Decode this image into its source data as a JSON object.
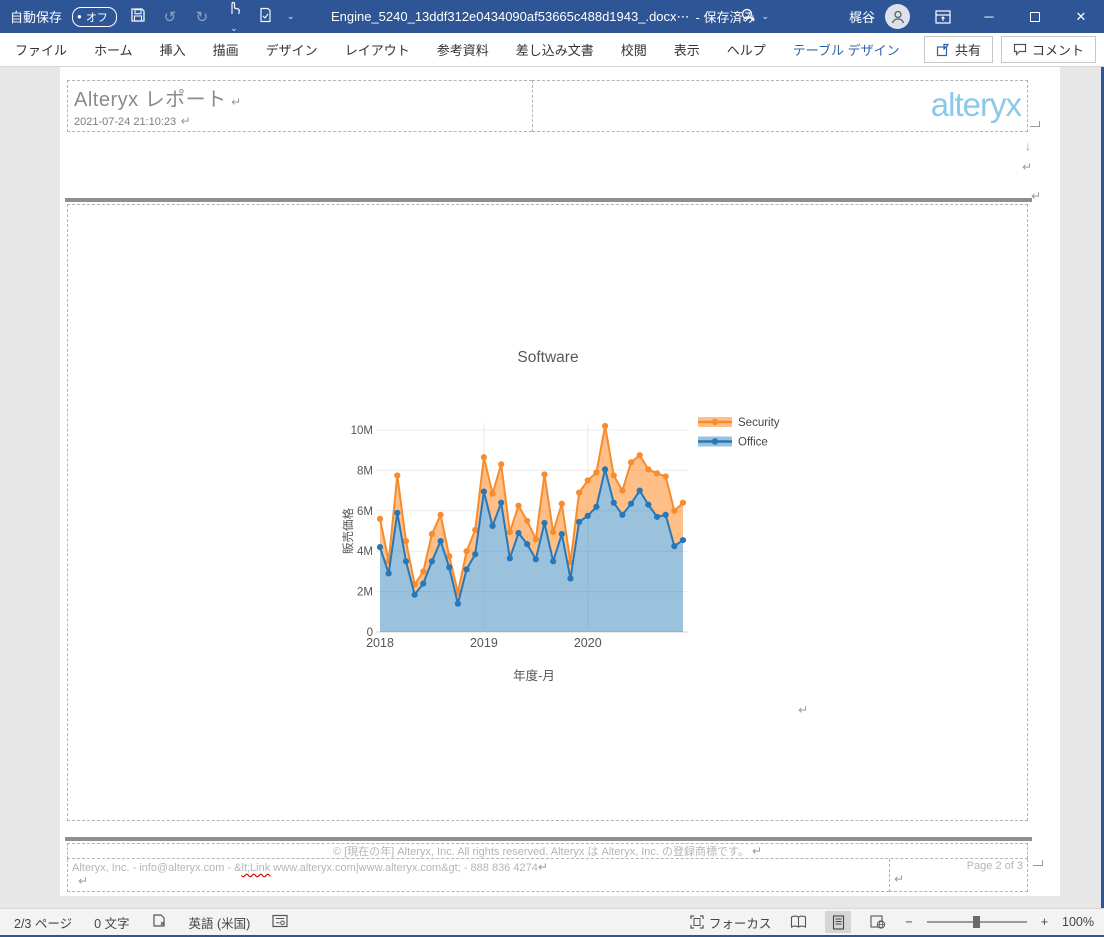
{
  "titlebar": {
    "autosave_label": "自動保存",
    "autosave_state": "オフ",
    "document_title": "Engine_5240_13ddf312e0434090af53665c488d1943_.docx⋯",
    "saved_status": "-  保存済み",
    "user_name": "梶谷"
  },
  "icons": {
    "dropdown_caret": "⌄",
    "minimize": "─",
    "close": "✕",
    "autosave_dot": "●",
    "down_mark": "↓",
    "return_mark": "↵",
    "minus": "−",
    "plus": "+",
    "undo": "↺",
    "redo": "↻"
  },
  "ribbon": {
    "tabs": [
      {
        "label": "ファイル",
        "contextual": false
      },
      {
        "label": "ホーム",
        "contextual": false
      },
      {
        "label": "挿入",
        "contextual": false
      },
      {
        "label": "描画",
        "contextual": false
      },
      {
        "label": "デザイン",
        "contextual": false
      },
      {
        "label": "レイアウト",
        "contextual": false
      },
      {
        "label": "参考資料",
        "contextual": false
      },
      {
        "label": "差し込み文書",
        "contextual": false
      },
      {
        "label": "校閲",
        "contextual": false
      },
      {
        "label": "表示",
        "contextual": false
      },
      {
        "label": "ヘルプ",
        "contextual": false
      },
      {
        "label": "テーブル デザイン",
        "contextual": true
      },
      {
        "label": "レイアウト",
        "contextual": true
      }
    ],
    "share_label": "共有",
    "comments_label": "コメント"
  },
  "document": {
    "header": {
      "report_title": "Alteryx レポート",
      "timestamp": "2021-07-24 21:10:23",
      "logo_text": "alteryx",
      "logo_color": "#8ac9ea"
    },
    "footer": {
      "copyright": "© [現在の年] Alteryx, Inc. All rights reserved. Alteryx は Alteryx, Inc. の登録商標です。",
      "contact_pre": "Alteryx, Inc. - info@alteryx.com - &",
      "contact_misspelled": "lt;Link",
      "contact_post": " www.alteryx.com|www.alteryx.com&gt; - 888 836 4274",
      "page_number": "Page 2 of 3"
    }
  },
  "chart_data": {
    "type": "area",
    "title": "Software",
    "xlabel": "年度-月",
    "ylabel": "販売価格",
    "units": "M",
    "x_ticks": [
      "2018",
      "2019",
      "2020"
    ],
    "x_tick_month_index": [
      0,
      12,
      24
    ],
    "y_ticks": [
      "0",
      "2M",
      "4M",
      "6M",
      "8M",
      "10M"
    ],
    "ylim": [
      0,
      10.5
    ],
    "grid": true,
    "legend_position": "top-right",
    "months_span": "2018-01 to 2020-12",
    "series": [
      {
        "name": "Security",
        "color": "#f68c2e",
        "fill": "rgba(255,127,14,0.5)",
        "values": [
          5.6,
          3.5,
          7.75,
          4.5,
          2.35,
          3.0,
          4.85,
          5.8,
          3.75,
          1.95,
          4.0,
          5.05,
          8.65,
          6.85,
          8.3,
          4.95,
          6.25,
          5.5,
          4.6,
          7.8,
          4.95,
          6.35,
          3.45,
          6.9,
          7.5,
          7.9,
          10.2,
          7.75,
          7.0,
          8.4,
          8.75,
          8.05,
          7.85,
          7.7,
          6.0,
          6.4
        ]
      },
      {
        "name": "Office",
        "color": "#2878b8",
        "fill": "rgba(31,119,180,0.45)",
        "values": [
          4.2,
          2.9,
          5.9,
          3.5,
          1.85,
          2.4,
          3.5,
          4.5,
          3.2,
          1.4,
          3.1,
          3.85,
          6.95,
          5.25,
          6.4,
          3.65,
          4.9,
          4.35,
          3.6,
          5.4,
          3.5,
          4.85,
          2.65,
          5.45,
          5.75,
          6.2,
          8.05,
          6.4,
          5.8,
          6.35,
          7.0,
          6.3,
          5.7,
          5.8,
          4.25,
          4.55
        ]
      }
    ]
  },
  "statusbar": {
    "page_indicator": "2/3 ページ",
    "word_count": "0 文字",
    "language": "英語 (米国)",
    "focus_label": "フォーカス",
    "zoom_level": "100%"
  }
}
